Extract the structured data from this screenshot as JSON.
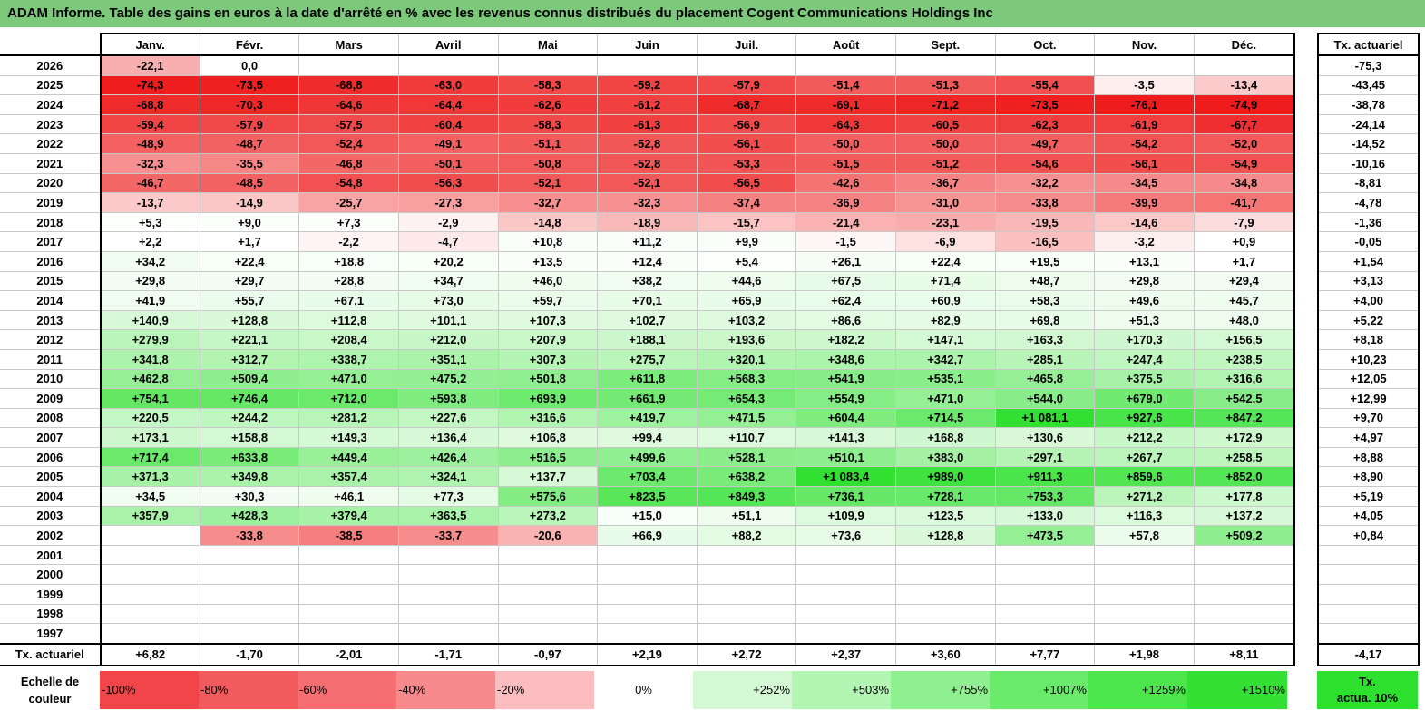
{
  "title": "ADAM Informe. Table des gains en euros à la date d'arrêté en % avec les revenus connus distribués du placement Cogent Communications Holdings Inc",
  "chart_data": {
    "type": "table",
    "columns": [
      "Janv.",
      "Févr.",
      "Mars",
      "Avril",
      "Mai",
      "Juin",
      "Juil.",
      "Août",
      "Sept.",
      "Oct.",
      "Nov.",
      "Déc."
    ],
    "rate_header": "Tx. actuariel",
    "rows": [
      {
        "year": "2026",
        "values": [
          "-22,1",
          "0,0",
          "",
          "",
          "",
          "",
          "",
          "",
          "",
          "",
          "",
          ""
        ],
        "rate": "-75,3"
      },
      {
        "year": "2025",
        "values": [
          "-74,3",
          "-73,5",
          "-68,8",
          "-63,0",
          "-58,3",
          "-59,2",
          "-57,9",
          "-51,4",
          "-51,3",
          "-55,4",
          "-3,5",
          "-13,4"
        ],
        "rate": "-43,45"
      },
      {
        "year": "2024",
        "values": [
          "-68,8",
          "-70,3",
          "-64,6",
          "-64,4",
          "-62,6",
          "-61,2",
          "-68,7",
          "-69,1",
          "-71,2",
          "-73,5",
          "-76,1",
          "-74,9"
        ],
        "rate": "-38,78"
      },
      {
        "year": "2023",
        "values": [
          "-59,4",
          "-57,9",
          "-57,5",
          "-60,4",
          "-58,3",
          "-61,3",
          "-56,9",
          "-64,3",
          "-60,5",
          "-62,3",
          "-61,9",
          "-67,7"
        ],
        "rate": "-24,14"
      },
      {
        "year": "2022",
        "values": [
          "-48,9",
          "-48,7",
          "-52,4",
          "-49,1",
          "-51,1",
          "-52,8",
          "-56,1",
          "-50,0",
          "-50,0",
          "-49,7",
          "-54,2",
          "-52,0"
        ],
        "rate": "-14,52"
      },
      {
        "year": "2021",
        "values": [
          "-32,3",
          "-35,5",
          "-46,8",
          "-50,1",
          "-50,8",
          "-52,8",
          "-53,3",
          "-51,5",
          "-51,2",
          "-54,6",
          "-56,1",
          "-54,9"
        ],
        "rate": "-10,16"
      },
      {
        "year": "2020",
        "values": [
          "-46,7",
          "-48,5",
          "-54,8",
          "-56,3",
          "-52,1",
          "-52,1",
          "-56,5",
          "-42,6",
          "-36,7",
          "-32,2",
          "-34,5",
          "-34,8"
        ],
        "rate": "-8,81"
      },
      {
        "year": "2019",
        "values": [
          "-13,7",
          "-14,9",
          "-25,7",
          "-27,3",
          "-32,7",
          "-32,3",
          "-37,4",
          "-36,9",
          "-31,0",
          "-33,8",
          "-39,9",
          "-41,7"
        ],
        "rate": "-4,78"
      },
      {
        "year": "2018",
        "values": [
          "+5,3",
          "+9,0",
          "+7,3",
          "-2,9",
          "-14,8",
          "-18,9",
          "-15,7",
          "-21,4",
          "-23,1",
          "-19,5",
          "-14,6",
          "-7,9"
        ],
        "rate": "-1,36"
      },
      {
        "year": "2017",
        "values": [
          "+2,2",
          "+1,7",
          "-2,2",
          "-4,7",
          "+10,8",
          "+11,2",
          "+9,9",
          "-1,5",
          "-6,9",
          "-16,5",
          "-3,2",
          "+0,9"
        ],
        "rate": "-0,05"
      },
      {
        "year": "2016",
        "values": [
          "+34,2",
          "+22,4",
          "+18,8",
          "+20,2",
          "+13,5",
          "+12,4",
          "+5,4",
          "+26,1",
          "+22,4",
          "+19,5",
          "+13,1",
          "+1,7"
        ],
        "rate": "+1,54"
      },
      {
        "year": "2015",
        "values": [
          "+29,8",
          "+29,7",
          "+28,8",
          "+34,7",
          "+46,0",
          "+38,2",
          "+44,6",
          "+67,5",
          "+71,4",
          "+48,7",
          "+29,8",
          "+29,4"
        ],
        "rate": "+3,13"
      },
      {
        "year": "2014",
        "values": [
          "+41,9",
          "+55,7",
          "+67,1",
          "+73,0",
          "+59,7",
          "+70,1",
          "+65,9",
          "+62,4",
          "+60,9",
          "+58,3",
          "+49,6",
          "+45,7"
        ],
        "rate": "+4,00"
      },
      {
        "year": "2013",
        "values": [
          "+140,9",
          "+128,8",
          "+112,8",
          "+101,1",
          "+107,3",
          "+102,7",
          "+103,2",
          "+86,6",
          "+82,9",
          "+69,8",
          "+51,3",
          "+48,0"
        ],
        "rate": "+5,22"
      },
      {
        "year": "2012",
        "values": [
          "+279,9",
          "+221,1",
          "+208,4",
          "+212,0",
          "+207,9",
          "+188,1",
          "+193,6",
          "+182,2",
          "+147,1",
          "+163,3",
          "+170,3",
          "+156,5"
        ],
        "rate": "+8,18"
      },
      {
        "year": "2011",
        "values": [
          "+341,8",
          "+312,7",
          "+338,7",
          "+351,1",
          "+307,3",
          "+275,7",
          "+320,1",
          "+348,6",
          "+342,7",
          "+285,1",
          "+247,4",
          "+238,5"
        ],
        "rate": "+10,23"
      },
      {
        "year": "2010",
        "values": [
          "+462,8",
          "+509,4",
          "+471,0",
          "+475,2",
          "+501,8",
          "+611,8",
          "+568,3",
          "+541,9",
          "+535,1",
          "+465,8",
          "+375,5",
          "+316,6"
        ],
        "rate": "+12,05"
      },
      {
        "year": "2009",
        "values": [
          "+754,1",
          "+746,4",
          "+712,0",
          "+593,8",
          "+693,9",
          "+661,9",
          "+654,3",
          "+554,9",
          "+471,0",
          "+544,0",
          "+679,0",
          "+542,5"
        ],
        "rate": "+12,99"
      },
      {
        "year": "2008",
        "values": [
          "+220,5",
          "+244,2",
          "+281,2",
          "+227,6",
          "+316,6",
          "+419,7",
          "+471,5",
          "+604,4",
          "+714,5",
          "+1 081,1",
          "+927,6",
          "+847,2"
        ],
        "rate": "+9,70"
      },
      {
        "year": "2007",
        "values": [
          "+173,1",
          "+158,8",
          "+149,3",
          "+136,4",
          "+106,8",
          "+99,4",
          "+110,7",
          "+141,3",
          "+168,8",
          "+130,6",
          "+212,2",
          "+172,9"
        ],
        "rate": "+4,97"
      },
      {
        "year": "2006",
        "values": [
          "+717,4",
          "+633,8",
          "+449,4",
          "+426,4",
          "+516,5",
          "+499,6",
          "+528,1",
          "+510,1",
          "+383,0",
          "+297,1",
          "+267,7",
          "+258,5"
        ],
        "rate": "+8,88"
      },
      {
        "year": "2005",
        "values": [
          "+371,3",
          "+349,8",
          "+357,4",
          "+324,1",
          "+137,7",
          "+703,4",
          "+638,2",
          "+1 083,4",
          "+989,0",
          "+911,3",
          "+859,6",
          "+852,0"
        ],
        "rate": "+8,90"
      },
      {
        "year": "2004",
        "values": [
          "+34,5",
          "+30,3",
          "+46,1",
          "+77,3",
          "+575,6",
          "+823,5",
          "+849,3",
          "+736,1",
          "+728,1",
          "+753,3",
          "+271,2",
          "+177,8"
        ],
        "rate": "+5,19"
      },
      {
        "year": "2003",
        "values": [
          "+357,9",
          "+428,3",
          "+379,4",
          "+363,5",
          "+273,2",
          "+15,0",
          "+51,1",
          "+109,9",
          "+123,5",
          "+133,0",
          "+116,3",
          "+137,2"
        ],
        "rate": "+4,05"
      },
      {
        "year": "2002",
        "values": [
          "",
          "-33,8",
          "-38,5",
          "-33,7",
          "-20,6",
          "+66,9",
          "+88,2",
          "+73,6",
          "+128,8",
          "+473,5",
          "+57,8",
          "+509,2"
        ],
        "rate": "+0,84"
      },
      {
        "year": "2001",
        "values": [
          "",
          "",
          "",
          "",
          "",
          "",
          "",
          "",
          "",
          "",
          "",
          ""
        ],
        "rate": ""
      },
      {
        "year": "2000",
        "values": [
          "",
          "",
          "",
          "",
          "",
          "",
          "",
          "",
          "",
          "",
          "",
          ""
        ],
        "rate": ""
      },
      {
        "year": "1999",
        "values": [
          "",
          "",
          "",
          "",
          "",
          "",
          "",
          "",
          "",
          "",
          "",
          ""
        ],
        "rate": ""
      },
      {
        "year": "1998",
        "values": [
          "",
          "",
          "",
          "",
          "",
          "",
          "",
          "",
          "",
          "",
          "",
          ""
        ],
        "rate": ""
      },
      {
        "year": "1997",
        "values": [
          "",
          "",
          "",
          "",
          "",
          "",
          "",
          "",
          "",
          "",
          "",
          ""
        ],
        "rate": ""
      }
    ],
    "footer": {
      "label": "Tx. actuariel",
      "values": [
        "+6,82",
        "-1,70",
        "-2,01",
        "-1,71",
        "-0,97",
        "+2,19",
        "+2,72",
        "+2,37",
        "+3,60",
        "+7,77",
        "+1,98",
        "+8,11"
      ],
      "rate": "-4,17"
    },
    "color_scale": {
      "label_line1": "Echelle de",
      "label_line2": "couleur",
      "steps": [
        {
          "label": "-100%",
          "color": "#f2454a"
        },
        {
          "label": "-80%",
          "color": "#f35a5e"
        },
        {
          "label": "-60%",
          "color": "#f46e72"
        },
        {
          "label": "-40%",
          "color": "#f78a8d"
        },
        {
          "label": "-20%",
          "color": "#fbbdbf"
        },
        {
          "label": "0%",
          "color": "#ffffff"
        },
        {
          "label": "+252%",
          "color": "#d4f8d4"
        },
        {
          "label": "+503%",
          "color": "#b3f5b3"
        },
        {
          "label": "+755%",
          "color": "#8ff08f"
        },
        {
          "label": "+1007%",
          "color": "#6aea6a"
        },
        {
          "label": "+1259%",
          "color": "#4de64d"
        },
        {
          "label": "+1510%",
          "color": "#33e033"
        }
      ],
      "rate_label_line1": "Tx.",
      "rate_label_line2": "actua. 10%",
      "rate_color": "#2ee02e"
    }
  }
}
